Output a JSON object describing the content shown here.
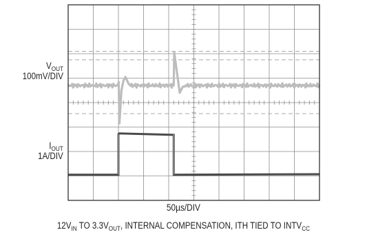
{
  "chart_data": {
    "type": "line",
    "title": "",
    "grid": true,
    "x_scale": "50µs/DIV",
    "x_divisions": 10,
    "y_divisions": 8,
    "x_range_us": [
      0,
      500
    ],
    "channels": [
      {
        "name_main": "V",
        "name_sub": "OUT",
        "scale": "100mV/DIV",
        "color": "#bdbdbd",
        "baseline_div": 4.7,
        "events": [
          {
            "t_us": 100,
            "type": "load-step-up",
            "undershoot_div": -1.55,
            "overshoot_div": 0.35
          },
          {
            "t_us": 210,
            "type": "load-step-down",
            "overshoot_div": 1.35,
            "undershoot_div": -0.3
          }
        ]
      },
      {
        "name_main": "I",
        "name_sub": "OUT",
        "scale": "1A/DIV",
        "color": "#4a4a4a",
        "low_div": 1.05,
        "high_div": 2.7,
        "step_on_us": 100,
        "step_off_us": 210
      }
    ],
    "dashed_reference_lines_div": [
      6.1,
      5.75,
      3.55
    ]
  },
  "labels": {
    "vout_main": "V",
    "vout_sub": "OUT",
    "vout_scale": "100mV/DIV",
    "iout_main": "I",
    "iout_sub": "OUT",
    "iout_scale": "1A/DIV",
    "x_scale": "50µs/DIV"
  },
  "caption": {
    "p1": "12V",
    "p1_sub": "IN",
    "p2": " TO 3.3V",
    "p2_sub": "OUT",
    "p3": ", INTERNAL COMPENSATION, ITH TIED TO INTV",
    "p3_sub": "CC"
  },
  "colors": {
    "grid": "#8c8c8c",
    "frame": "#231f20",
    "vout_trace": "#bdbdbd",
    "iout_trace": "#4a4a4a"
  }
}
